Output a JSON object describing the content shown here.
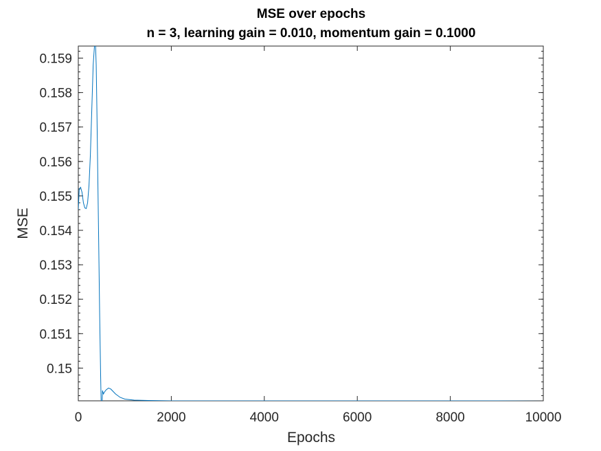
{
  "chart_data": {
    "type": "line",
    "title": "MSE over epochs",
    "subtitle": "n = 3, learning gain = 0.010, momentum gain = 0.1000",
    "xlabel": "Epochs",
    "ylabel": "MSE",
    "xlim": [
      0,
      10000
    ],
    "ylim": [
      0.14905,
      0.15935
    ],
    "xticks": [
      0,
      2000,
      4000,
      6000,
      8000,
      10000
    ],
    "xtick_labels": [
      "0",
      "2000",
      "4000",
      "6000",
      "8000",
      "10000"
    ],
    "yticks": [
      0.15,
      0.151,
      0.152,
      0.153,
      0.154,
      0.155,
      0.156,
      0.157,
      0.158,
      0.159
    ],
    "ytick_labels": [
      "0.15",
      "0.151",
      "0.152",
      "0.153",
      "0.154",
      "0.155",
      "0.156",
      "0.157",
      "0.158",
      "0.159"
    ],
    "grid": false,
    "series": [
      {
        "color": "#0072BD",
        "x": [
          0,
          20,
          50,
          80,
          110,
          140,
          170,
          200,
          230,
          260,
          290,
          320,
          350,
          370,
          385,
          400,
          420,
          440,
          460,
          480,
          500,
          520,
          540,
          560,
          600,
          650,
          700,
          800,
          900,
          1000,
          1200,
          1500,
          2000,
          3000,
          4000,
          5000,
          6000,
          7000,
          8000,
          9000,
          10000
        ],
        "y": [
          0.1546,
          0.1552,
          0.15525,
          0.1551,
          0.1548,
          0.15465,
          0.15463,
          0.1548,
          0.1553,
          0.1562,
          0.1575,
          0.1588,
          0.1594,
          0.1594,
          0.1588,
          0.1575,
          0.1555,
          0.1535,
          0.1515,
          0.1498,
          0.1484,
          0.14935,
          0.14925,
          0.1493,
          0.14937,
          0.14942,
          0.14939,
          0.14925,
          0.14915,
          0.1491,
          0.14907,
          0.14906,
          0.14905,
          0.14905,
          0.14905,
          0.14905,
          0.14905,
          0.14905,
          0.14905,
          0.14905,
          0.14904
        ]
      }
    ]
  }
}
